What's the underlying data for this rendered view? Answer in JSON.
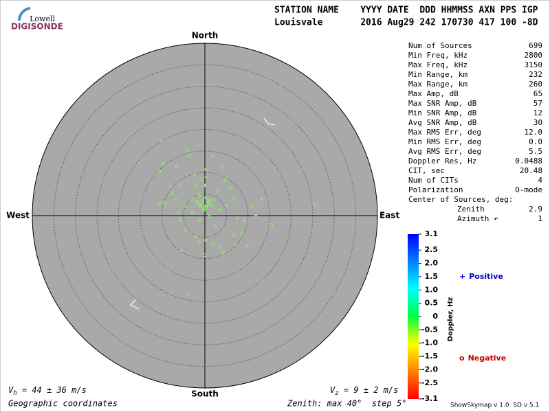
{
  "logo": {
    "top": "Lowell",
    "bottom": "DIGISONDE"
  },
  "header": {
    "line1": "STATION NAME    YYYY DATE  DDD HHMMSS AXN PPS IGP",
    "line2": "Louisvale       2016 Aug29 242 170730 417 100 -8D"
  },
  "stats": [
    [
      "Num of Sources",
      "699"
    ],
    [
      "Min Freq, kHz",
      "2800"
    ],
    [
      "Max Freq, kHz",
      "3150"
    ],
    [
      "Min Range, km",
      "232"
    ],
    [
      "Max Range, km",
      "260"
    ],
    [
      "Max Amp, dB",
      "65"
    ],
    [
      "Max SNR Amp, dB",
      "57"
    ],
    [
      "Min SNR Amp, dB",
      "12"
    ],
    [
      "Avg SNR Amp, dB",
      "30"
    ],
    [
      "Max RMS Err, deg",
      "12.0"
    ],
    [
      "Min RMS Err, deg",
      "0.0"
    ],
    [
      "Avg RMS Err, deg",
      "5.5"
    ],
    [
      "Doppler Res, Hz",
      "0.0488"
    ],
    [
      "CIT, sec",
      "20.48"
    ],
    [
      "Num of CITs",
      "4"
    ],
    [
      "Polarization",
      "O-mode"
    ]
  ],
  "center": {
    "title": "Center of Sources, deg:",
    "rows": [
      [
        "Zenith",
        "2.9"
      ],
      [
        "Azimuth ↶",
        "1"
      ]
    ]
  },
  "velocity": {
    "h": {
      "symbol": "V",
      "sub": "h",
      "text": " = 44 ± 36 m/s"
    },
    "z": {
      "symbol": "V",
      "sub": "z",
      "text": " = 9 ± 2 m/s"
    }
  },
  "footer": {
    "coords": "Geographic coordinates",
    "zenith": "Zenith: max 40°  step 5°",
    "version": "ShowSkymap v 1.0  SD v 5.1"
  },
  "chart_data": {
    "type": "polar-scatter",
    "directions": {
      "north": "North",
      "south": "South",
      "east": "East",
      "west": "West"
    },
    "rlim": [
      0,
      40
    ],
    "rticks": [
      5,
      10,
      15,
      20,
      25,
      30,
      35
    ],
    "point_color": "#8cf060",
    "series": [
      {
        "name": "Positive",
        "marker": "+",
        "color": "#0000cc",
        "x": [
          11.1,
          11.8,
          9.9,
          -5.3,
          -4.0,
          -1.3,
          7.0,
          13.1,
          0.3,
          0.0
        ],
        "values": [
          2.2,
          0,
          -7.0,
          -8.1,
          -18.2,
          -6.1,
          -6.8,
          3.8,
          8.9,
          7.0
        ]
      },
      {
        "name": "Negative",
        "marker": "o",
        "color": "#cc0000",
        "x": [
          -10.2,
          -9.6,
          -10.5,
          -6.5,
          -4.1,
          -3.7,
          1.8,
          4.0,
          0.3,
          -0.6,
          -2.1,
          -5.7,
          -8.0,
          -6.8,
          -9.2,
          -10.5,
          -4.5,
          -2.9,
          -1.3,
          0.3,
          1.1,
          -0.5,
          1.9,
          3.5,
          5.1,
          6.7,
          5.9,
          4.8,
          7.5,
          9.1,
          8.6,
          15.4,
          25.5,
          -5.7,
          -4.5,
          -2.1,
          0.3,
          1.9,
          3.5,
          6.7,
          4.3,
          0.0,
          2.4,
          -1.3,
          1.1,
          -2.9,
          -6.1,
          -7.6,
          2.9,
          -2.4,
          0.3,
          -1.0,
          -0.3,
          -1.6,
          1.0,
          -0.5,
          0.8,
          1.5,
          -1.2,
          0.2,
          2.2,
          -2.0
        ],
        "values": [
          17.5,
          12.1,
          10.2,
          11.5,
          15.3,
          14.0,
          13.7,
          11.3,
          10.7,
          8.3,
          7.0,
          7.3,
          6.7,
          3.8,
          2.9,
          2.9,
          2.2,
          3.8,
          4.6,
          4.1,
          3.5,
          2.9,
          2.2,
          1.4,
          2.2,
          3.8,
          6.2,
          8.3,
          -0.6,
          -1.3,
          -4.1,
          -2.2,
          2.5,
          -1.0,
          -3.3,
          -4.9,
          -5.7,
          -6.5,
          -7.3,
          -4.5,
          -8.6,
          -9.2,
          -2.5,
          -1.0,
          -0.2,
          0.6,
          0.6,
          5.1,
          5.7,
          9.4,
          2.2,
          2.2,
          1.4,
          3.0,
          2.9,
          3.5,
          3.2,
          2.6,
          2.5,
          1.8,
          3.8,
          3.2
        ]
      }
    ],
    "colorbar": {
      "label": "Doppler, Hz",
      "zlim": [
        -3.1,
        3.1
      ],
      "colorscale": [
        "#ff0000",
        "#ff8000",
        "#ffff00",
        "#00ff40",
        "#00ffff",
        "#0080ff",
        "#0000ff"
      ],
      "zticks": [
        3.1,
        2.5,
        {
          "value": 2,
          "label": "2.0"
        },
        1.5,
        {
          "value": 1,
          "label": "1.0"
        },
        0.5,
        0,
        -0.5,
        {
          "value": -1,
          "label": "-1.0"
        },
        -1.5,
        {
          "value": -2,
          "label": "-2.0"
        },
        -2.5,
        -3.1
      ]
    }
  }
}
